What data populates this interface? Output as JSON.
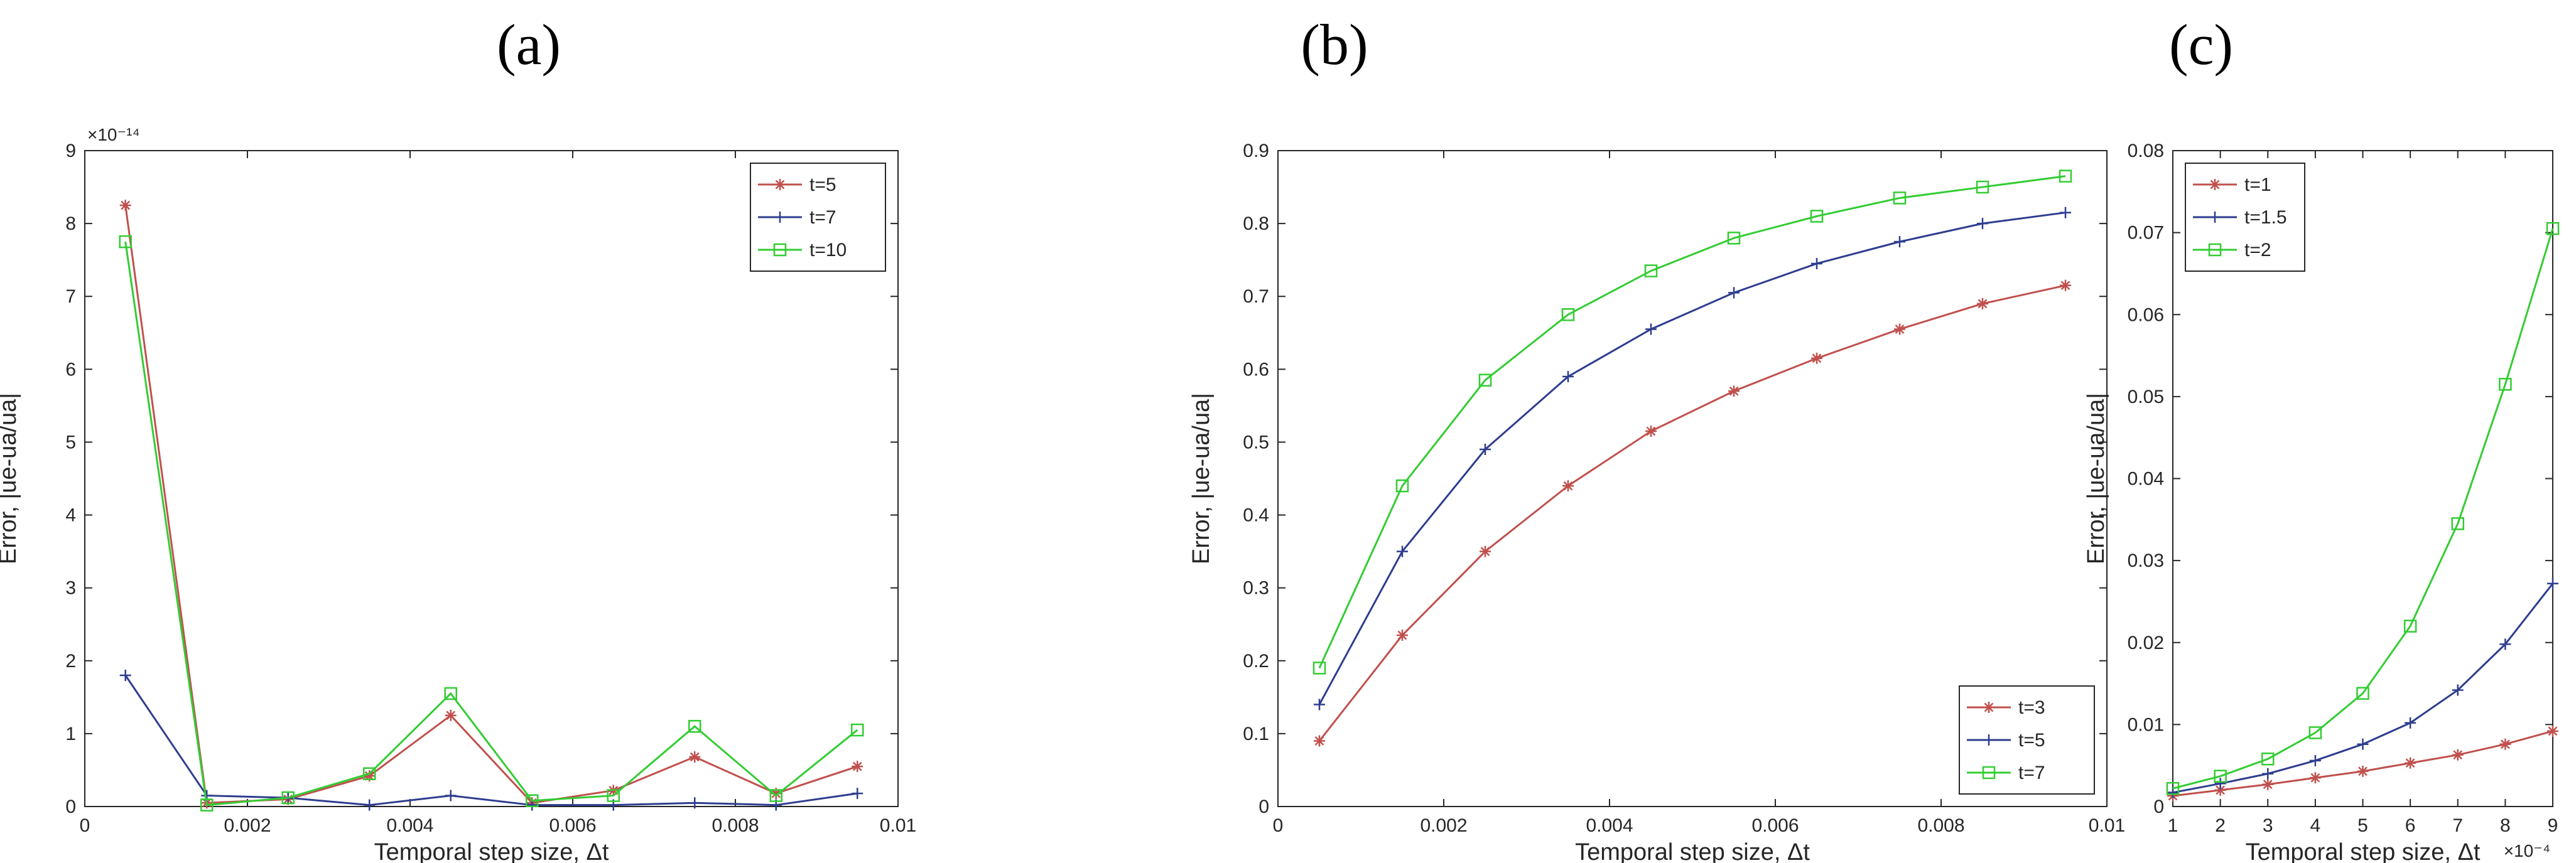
{
  "panels": [
    {
      "label": "(a)"
    },
    {
      "label": "(b)"
    },
    {
      "label": "(c)"
    }
  ],
  "chart_data": [
    {
      "type": "line",
      "panel": "(a)",
      "title": "",
      "xlabel": "Temporal step size, Δt",
      "ylabel": "Error, |ue-ua/ua|",
      "xlim": [
        0,
        0.01
      ],
      "ylim": [
        0,
        9
      ],
      "y_multiplier": "×10⁻¹⁴",
      "x_ticks": [
        0,
        0.002,
        0.004,
        0.006,
        0.008,
        0.01
      ],
      "x_tick_labels": [
        "0",
        "0.002",
        "0.004",
        "0.006",
        "0.008",
        "0.01"
      ],
      "y_ticks": [
        0,
        1,
        2,
        3,
        4,
        5,
        6,
        7,
        8,
        9
      ],
      "y_tick_labels": [
        "0",
        "1",
        "2",
        "3",
        "4",
        "5",
        "6",
        "7",
        "8",
        "9"
      ],
      "legend_position": "top-right",
      "x": [
        0.0005,
        0.0015,
        0.0025,
        0.0035,
        0.0045,
        0.0055,
        0.0065,
        0.0075,
        0.0085,
        0.0095
      ],
      "series": [
        {
          "name": "t=5",
          "color": "#c0504d",
          "marker": "asterisk",
          "values": [
            8.25,
            0.05,
            0.1,
            0.42,
            1.25,
            0.05,
            0.22,
            0.68,
            0.18,
            0.55
          ]
        },
        {
          "name": "t=7",
          "color": "#2e3d8f",
          "marker": "plus",
          "values": [
            1.8,
            0.15,
            0.12,
            0.02,
            0.15,
            0.02,
            0.02,
            0.05,
            0.02,
            0.18
          ]
        },
        {
          "name": "t=10",
          "color": "#33cc33",
          "marker": "square",
          "values": [
            7.75,
            0.02,
            0.12,
            0.45,
            1.55,
            0.08,
            0.15,
            1.1,
            0.15,
            1.05
          ]
        }
      ]
    },
    {
      "type": "line",
      "panel": "(b)",
      "title": "",
      "xlabel": "Temporal step size, Δt",
      "ylabel": "Error, |ue-ua/ua|",
      "xlim": [
        0,
        0.01
      ],
      "ylim": [
        0,
        0.9
      ],
      "x_ticks": [
        0,
        0.002,
        0.004,
        0.006,
        0.008,
        0.01
      ],
      "x_tick_labels": [
        "0",
        "0.002",
        "0.004",
        "0.006",
        "0.008",
        "0.01"
      ],
      "y_ticks": [
        0,
        0.1,
        0.2,
        0.3,
        0.4,
        0.5,
        0.6,
        0.7,
        0.8,
        0.9
      ],
      "y_tick_labels": [
        "0",
        "0.1",
        "0.2",
        "0.3",
        "0.4",
        "0.5",
        "0.6",
        "0.7",
        "0.8",
        "0.9"
      ],
      "legend_position": "bottom-right",
      "x": [
        0.0005,
        0.0015,
        0.0025,
        0.0035,
        0.0045,
        0.0055,
        0.0065,
        0.0075,
        0.0085,
        0.0095
      ],
      "series": [
        {
          "name": "t=3",
          "color": "#c0504d",
          "marker": "asterisk",
          "values": [
            0.09,
            0.235,
            0.35,
            0.44,
            0.515,
            0.57,
            0.615,
            0.655,
            0.69,
            0.715
          ]
        },
        {
          "name": "t=5",
          "color": "#2e3d8f",
          "marker": "plus",
          "values": [
            0.14,
            0.35,
            0.49,
            0.59,
            0.655,
            0.705,
            0.745,
            0.775,
            0.8,
            0.815
          ]
        },
        {
          "name": "t=7",
          "color": "#33cc33",
          "marker": "square",
          "values": [
            0.19,
            0.44,
            0.585,
            0.675,
            0.735,
            0.78,
            0.81,
            0.835,
            0.85,
            0.865
          ]
        }
      ]
    },
    {
      "type": "line",
      "panel": "(c)",
      "title": "",
      "xlabel": "Temporal step size, Δt",
      "ylabel": "Error, |ue-ua/ua|",
      "xlim": [
        1,
        9
      ],
      "ylim": [
        0,
        0.08
      ],
      "x_multiplier": "×10⁻⁴",
      "x_ticks": [
        1,
        2,
        3,
        4,
        5,
        6,
        7,
        8,
        9
      ],
      "x_tick_labels": [
        "1",
        "2",
        "3",
        "4",
        "5",
        "6",
        "7",
        "8",
        "9"
      ],
      "y_ticks": [
        0,
        0.01,
        0.02,
        0.03,
        0.04,
        0.05,
        0.06,
        0.07,
        0.08
      ],
      "y_tick_labels": [
        "0",
        "0.01",
        "0.02",
        "0.03",
        "0.04",
        "0.05",
        "0.06",
        "0.07",
        "0.08"
      ],
      "legend_position": "top-left",
      "x": [
        1,
        2,
        3,
        4,
        5,
        6,
        7,
        8,
        9
      ],
      "series": [
        {
          "name": "t=1",
          "color": "#c0504d",
          "marker": "asterisk",
          "values": [
            0.0013,
            0.002,
            0.0027,
            0.0035,
            0.0043,
            0.0053,
            0.0063,
            0.0076,
            0.0092
          ]
        },
        {
          "name": "t=1.5",
          "color": "#2e3d8f",
          "marker": "plus",
          "values": [
            0.0017,
            0.0028,
            0.004,
            0.0056,
            0.0076,
            0.0102,
            0.0142,
            0.0198,
            0.0272
          ]
        },
        {
          "name": "t=2",
          "color": "#33cc33",
          "marker": "square",
          "values": [
            0.0022,
            0.0037,
            0.0058,
            0.009,
            0.0138,
            0.022,
            0.0345,
            0.0515,
            0.0705
          ]
        }
      ]
    }
  ]
}
